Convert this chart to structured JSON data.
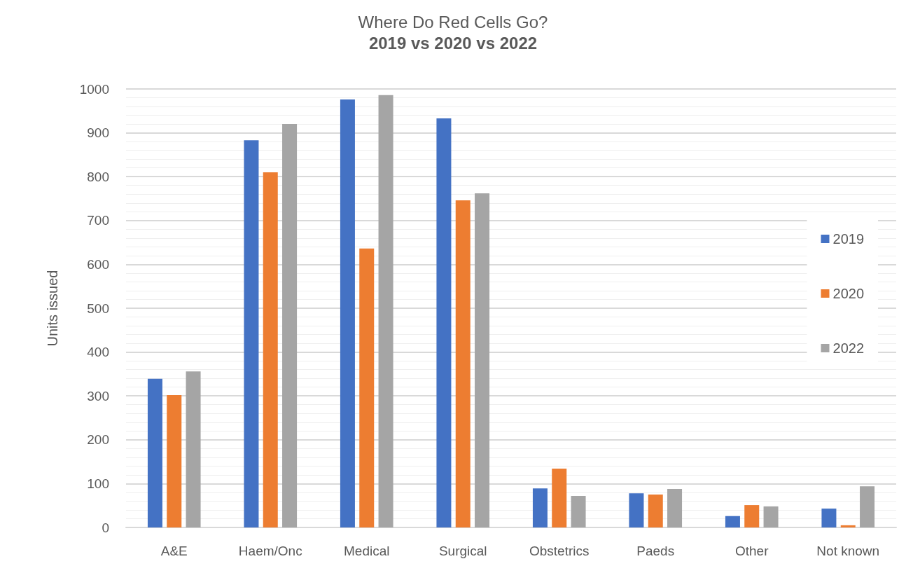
{
  "chart_data": {
    "type": "bar",
    "title": "Where Do Red Cells Go?",
    "subtitle": "2019 vs 2020 vs 2022",
    "ylabel": "Units issued",
    "categories": [
      "A&E",
      "Haem/Onc",
      "Medical",
      "Surgical",
      "Obstetrics",
      "Paeds",
      "Other",
      "Not known"
    ],
    "series": [
      {
        "name": "2019",
        "color": "#4472c4",
        "values": [
          339,
          883,
          976,
          933,
          89,
          78,
          26,
          43
        ]
      },
      {
        "name": "2020",
        "color": "#ed7d31",
        "values": [
          302,
          810,
          636,
          746,
          134,
          75,
          51,
          5
        ]
      },
      {
        "name": "2022",
        "color": "#a5a5a5",
        "values": [
          356,
          920,
          986,
          762,
          72,
          88,
          48,
          94
        ]
      }
    ],
    "ylim": [
      0,
      1000
    ],
    "yticks": [
      0,
      {
        "value": 20,
        "label": null
      },
      {
        "value": 40,
        "label": null
      },
      {
        "value": 60,
        "label": null
      },
      {
        "value": 80,
        "label": null
      },
      100,
      {
        "value": 120,
        "label": null
      },
      {
        "value": 140,
        "label": null
      },
      {
        "value": 160,
        "label": null
      },
      {
        "value": 180,
        "label": null
      },
      200,
      {
        "value": 220,
        "label": null
      },
      {
        "value": 240,
        "label": null
      },
      {
        "value": 260,
        "label": null
      },
      {
        "value": 280,
        "label": null
      },
      300,
      {
        "value": 320,
        "label": null
      },
      {
        "value": 340,
        "label": null
      },
      {
        "value": 360,
        "label": null
      },
      {
        "value": 380,
        "label": null
      },
      400,
      {
        "value": 420,
        "label": null
      },
      {
        "value": 440,
        "label": null
      },
      {
        "value": 460,
        "label": null
      },
      {
        "value": 480,
        "label": null
      },
      500,
      {
        "value": 520,
        "label": null
      },
      {
        "value": 540,
        "label": null
      },
      {
        "value": 560,
        "label": null
      },
      {
        "value": 580,
        "label": null
      },
      600,
      {
        "value": 620,
        "label": null
      },
      {
        "value": 640,
        "label": null
      },
      {
        "value": 660,
        "label": null
      },
      {
        "value": 680,
        "label": null
      },
      700,
      {
        "value": 720,
        "label": null
      },
      {
        "value": 740,
        "label": null
      },
      {
        "value": 760,
        "label": null
      },
      {
        "value": 780,
        "label": null
      },
      800,
      {
        "value": 820,
        "label": null
      },
      {
        "value": 840,
        "label": null
      },
      {
        "value": 860,
        "label": null
      },
      {
        "value": 880,
        "label": null
      },
      900,
      {
        "value": 920,
        "label": null
      },
      {
        "value": 940,
        "label": null
      },
      {
        "value": 960,
        "label": null
      },
      {
        "value": 980,
        "label": null
      },
      1000
    ],
    "grid": "y",
    "legend": "right"
  }
}
